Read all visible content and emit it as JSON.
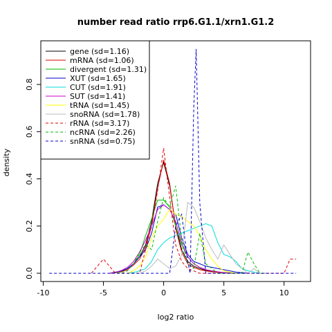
{
  "chart_data": {
    "type": "line",
    "title": "number read ratio rrp6.G1.1/xrn1.G1.2",
    "xlabel": "log2 ratio",
    "ylabel": "density",
    "xlim": [
      -10.2,
      12.2
    ],
    "ylim": [
      -0.035,
      0.985
    ],
    "x_ticks": [
      -10,
      -5,
      0,
      5,
      10
    ],
    "y_ticks": [
      0.0,
      0.2,
      0.4,
      0.6,
      0.8
    ],
    "legend_position": "top-left",
    "series": [
      {
        "name": "gene (sd=1.16)",
        "color": "#000000",
        "dash": "solid",
        "x": [
          -4.5,
          -4,
          -3.5,
          -3,
          -2.5,
          -2,
          -1.5,
          -1,
          -0.5,
          0,
          0.5,
          1,
          1.5,
          2,
          2.5,
          3,
          3.5,
          4,
          4.5,
          5,
          6
        ],
        "y": [
          0,
          0.002,
          0.008,
          0.02,
          0.04,
          0.07,
          0.12,
          0.22,
          0.38,
          0.47,
          0.37,
          0.2,
          0.1,
          0.05,
          0.03,
          0.02,
          0.012,
          0.008,
          0.005,
          0.002,
          0
        ]
      },
      {
        "name": "mRNA (sd=1.06)",
        "color": "#dd0000",
        "dash": "solid",
        "x": [
          -4.5,
          -4,
          -3.5,
          -3,
          -2.5,
          -2,
          -1.5,
          -1,
          -0.5,
          0,
          0.5,
          1,
          1.5,
          2,
          2.5,
          3,
          3.5,
          4,
          4.5,
          5,
          6
        ],
        "y": [
          0,
          0.002,
          0.006,
          0.015,
          0.035,
          0.06,
          0.11,
          0.2,
          0.36,
          0.48,
          0.38,
          0.19,
          0.09,
          0.04,
          0.025,
          0.015,
          0.01,
          0.006,
          0.004,
          0.002,
          0
        ]
      },
      {
        "name": "divergent (sd=1.31)",
        "color": "#00bb00",
        "dash": "solid",
        "x": [
          -4.5,
          -4,
          -3.5,
          -3,
          -2.5,
          -2,
          -1.5,
          -1,
          -0.5,
          0,
          0.5,
          1,
          1.5,
          2,
          2.5,
          3,
          3.5,
          4,
          4.5,
          5,
          6
        ],
        "y": [
          0,
          0.002,
          0.008,
          0.02,
          0.04,
          0.08,
          0.16,
          0.23,
          0.31,
          0.31,
          0.28,
          0.2,
          0.12,
          0.07,
          0.04,
          0.025,
          0.015,
          0.01,
          0.006,
          0.003,
          0
        ]
      },
      {
        "name": "XUT (sd=1.65)",
        "color": "#0000cc",
        "dash": "solid",
        "x": [
          -4.5,
          -4,
          -3.5,
          -3,
          -2.5,
          -2,
          -1.5,
          -1,
          -0.5,
          0,
          0.5,
          1,
          1.5,
          2,
          2.5,
          3,
          3.5,
          4,
          4.5,
          5,
          6,
          7
        ],
        "y": [
          0,
          0.005,
          0.01,
          0.02,
          0.04,
          0.07,
          0.1,
          0.17,
          0.28,
          0.29,
          0.27,
          0.25,
          0.15,
          0.08,
          0.05,
          0.04,
          0.03,
          0.025,
          0.02,
          0.015,
          0.005,
          0
        ]
      },
      {
        "name": "CUT (sd=1.91)",
        "color": "#00dddd",
        "dash": "solid",
        "x": [
          -3,
          -2.5,
          -2,
          -1.5,
          -1,
          -0.5,
          0,
          0.5,
          1,
          1.5,
          2,
          2.5,
          3,
          3.5,
          4,
          4.5,
          5,
          5.5,
          6,
          6.5,
          7,
          8
        ],
        "y": [
          0,
          0.003,
          0.01,
          0.02,
          0.05,
          0.1,
          0.13,
          0.15,
          0.16,
          0.17,
          0.18,
          0.19,
          0.2,
          0.21,
          0.2,
          0.13,
          0.08,
          0.07,
          0.05,
          0.02,
          0.01,
          0
        ]
      },
      {
        "name": "SUT (sd=1.41)",
        "color": "#cc00cc",
        "dash": "solid",
        "x": [
          -4.5,
          -4,
          -3.5,
          -3,
          -2.5,
          -2,
          -1.5,
          -1,
          -0.5,
          0,
          0.5,
          1,
          1.5,
          2,
          2.5,
          3,
          3.5,
          4,
          4.5,
          5,
          6
        ],
        "y": [
          0,
          0.004,
          0.012,
          0.025,
          0.05,
          0.09,
          0.14,
          0.2,
          0.27,
          0.29,
          0.27,
          0.22,
          0.13,
          0.07,
          0.04,
          0.025,
          0.015,
          0.01,
          0.006,
          0.003,
          0
        ]
      },
      {
        "name": "tRNA (sd=1.45)",
        "color": "#ffff00",
        "dash": "solid",
        "x": [
          -3,
          -2.5,
          -2,
          -1.5,
          -1,
          -0.5,
          0,
          0.5,
          1,
          1.5,
          2,
          2.5,
          3,
          3.5,
          4,
          4.5,
          5,
          6
        ],
        "y": [
          0,
          0.01,
          0.03,
          0.07,
          0.15,
          0.2,
          0.23,
          0.27,
          0.25,
          0.24,
          0.22,
          0.2,
          0.16,
          0.1,
          0.06,
          0.03,
          0.01,
          0
        ]
      },
      {
        "name": "snoRNA (sd=1.78)",
        "color": "#bbbbbb",
        "dash": "solid",
        "x": [
          -2,
          -1.5,
          -1,
          -0.5,
          0,
          0.5,
          1,
          1.5,
          2,
          2.5,
          3,
          3.5,
          4,
          4.5,
          5,
          5.5,
          6,
          6.5,
          7,
          7.5,
          8,
          8.5
        ],
        "y": [
          0,
          0.01,
          0.03,
          0.06,
          0.04,
          0.02,
          0.03,
          0.08,
          0.3,
          0.28,
          0.22,
          0.15,
          0.1,
          0.06,
          0.12,
          0.08,
          0.04,
          0.02,
          0,
          0.02,
          0,
          0
        ]
      },
      {
        "name": "rRNA (sd=3.17)",
        "color": "#dd0000",
        "dash": "dashed",
        "x": [
          -6,
          -5.5,
          -5,
          -4.5,
          -4,
          -3.5,
          -3,
          -2,
          -1,
          -0.5,
          0,
          0.5,
          1,
          1.5,
          2,
          3,
          4,
          5,
          6,
          7,
          8,
          9,
          9.5,
          10,
          10.5,
          11
        ],
        "y": [
          0,
          0.03,
          0.06,
          0.03,
          0,
          0,
          0,
          0,
          0.2,
          0.35,
          0.53,
          0.32,
          0.12,
          0.05,
          0.02,
          0,
          0,
          0,
          0,
          0,
          0,
          0,
          0,
          0,
          0.06,
          0.06
        ]
      },
      {
        "name": "ncRNA (sd=2.26)",
        "color": "#00bb00",
        "dash": "dashed",
        "x": [
          -3.5,
          -3,
          -2.5,
          -2,
          -1.5,
          -1,
          -0.5,
          0,
          0.5,
          1,
          1.5,
          2,
          2.5,
          3,
          3.5,
          4,
          4.5,
          5,
          5.5,
          6,
          6.5,
          7,
          7.5,
          8,
          8.5
        ],
        "y": [
          0,
          0.01,
          0.04,
          0.09,
          0.12,
          0.1,
          0.22,
          0.32,
          0.28,
          0.37,
          0.14,
          0.04,
          0.02,
          0.17,
          0.04,
          0.02,
          0,
          0,
          0,
          0,
          0,
          0.09,
          0.04,
          0,
          0
        ]
      },
      {
        "name": "snRNA (sd=0.75)",
        "color": "#0000cc",
        "dash": "dashed",
        "x": [
          -9.5,
          -6,
          -4.5,
          -4,
          -3,
          -2,
          -1,
          0,
          0.5,
          1,
          1.5,
          2,
          2.2,
          2.5,
          2.7,
          3,
          3.5,
          4,
          5,
          11
        ],
        "y": [
          0,
          0,
          0,
          0,
          0,
          0,
          0,
          0,
          0,
          0.2,
          0.25,
          0.05,
          0,
          0.7,
          0.95,
          0.3,
          0,
          0,
          0,
          0
        ]
      }
    ]
  }
}
